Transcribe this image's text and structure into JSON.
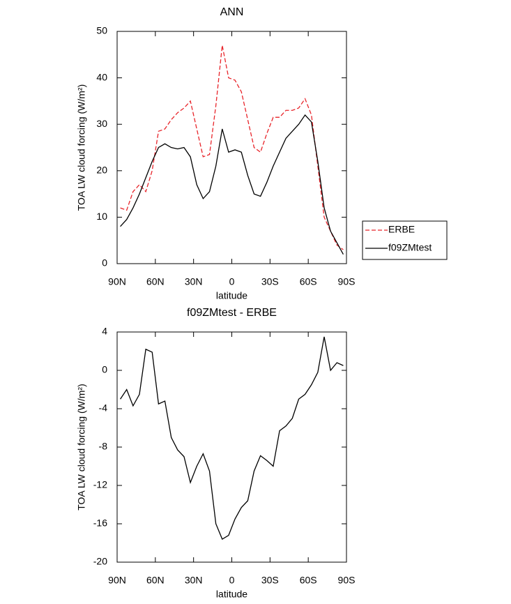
{
  "chart_data": [
    {
      "type": "line",
      "title": "ANN",
      "x_label": "latitude",
      "y_label": "TOA LW cloud forcing (W/m²)",
      "x": [
        87.5,
        82.5,
        77.5,
        72.5,
        67.5,
        62.5,
        57.5,
        52.5,
        47.5,
        42.5,
        37.5,
        32.5,
        27.5,
        22.5,
        17.5,
        12.5,
        7.5,
        2.5,
        -2.5,
        -7.5,
        -12.5,
        -17.5,
        -22.5,
        -27.5,
        -32.5,
        -37.5,
        -42.5,
        -47.5,
        -52.5,
        -57.5,
        -62.5,
        -67.5,
        -72.5,
        -77.5,
        -82.5,
        -87.5
      ],
      "series": [
        {
          "name": "ERBE",
          "color": "#e8242a",
          "line_style": "dashed",
          "values": [
            12,
            11.5,
            15.5,
            17,
            15.5,
            20,
            28.5,
            29,
            31,
            32.5,
            33.5,
            35,
            29,
            23,
            23.5,
            34,
            47,
            40,
            39.5,
            37,
            31,
            25,
            24,
            28,
            31.5,
            31.5,
            33,
            33,
            33.5,
            35.5,
            32,
            21,
            10,
            7,
            4,
            3
          ]
        },
        {
          "name": "f09ZMtest",
          "color": "#000000",
          "line_style": "solid",
          "values": [
            8,
            9.5,
            12,
            15,
            18.5,
            22,
            25,
            25.8,
            25,
            24.7,
            25,
            23,
            17,
            14,
            15.5,
            21,
            29,
            24,
            24.5,
            24,
            19,
            15,
            14.5,
            17.5,
            21,
            24,
            27,
            28.5,
            30,
            32,
            30.5,
            22,
            12,
            7,
            4.5,
            2
          ]
        }
      ],
      "xlim": [
        90,
        -90
      ],
      "xticks": [
        {
          "value": 90,
          "label": "90N"
        },
        {
          "value": 60,
          "label": "60N"
        },
        {
          "value": 30,
          "label": "30N"
        },
        0,
        {
          "value": -30,
          "label": "30S"
        },
        {
          "value": -60,
          "label": "60S"
        },
        {
          "value": -90,
          "label": "90S"
        }
      ],
      "ylim": [
        0,
        50
      ],
      "yticks": [
        0,
        10,
        20,
        30,
        40,
        50
      ],
      "legend": "right"
    },
    {
      "type": "line",
      "title": "f09ZMtest - ERBE",
      "x_label": "latitude",
      "y_label": "TOA LW cloud forcing (W/m²)",
      "x": [
        87.5,
        82.5,
        77.5,
        72.5,
        67.5,
        62.5,
        57.5,
        52.5,
        47.5,
        42.5,
        37.5,
        32.5,
        27.5,
        22.5,
        17.5,
        12.5,
        7.5,
        2.5,
        -2.5,
        -7.5,
        -12.5,
        -17.5,
        -22.5,
        -27.5,
        -32.5,
        -37.5,
        -42.5,
        -47.5,
        -52.5,
        -57.5,
        -62.5,
        -67.5,
        -72.5,
        -77.5,
        -82.5,
        -87.5
      ],
      "series": [
        {
          "color": "#000000",
          "line_style": "solid",
          "values": [
            -3,
            -2,
            -3.7,
            -2.5,
            2.2,
            1.9,
            -3.5,
            -3.2,
            -7,
            -8.3,
            -9,
            -11.7,
            -10,
            -8.7,
            -10.5,
            -16,
            -17.6,
            -17.2,
            -15.5,
            -14.3,
            -13.6,
            -10.5,
            -8.9,
            -9.4,
            -10,
            -6.3,
            -5.8,
            -5,
            -3,
            -2.5,
            -1.5,
            -0.2,
            3.5,
            0,
            0.8,
            0.5
          ]
        }
      ],
      "xlim": [
        90,
        -90
      ],
      "xticks": [
        {
          "value": 90,
          "label": "90N"
        },
        {
          "value": 60,
          "label": "60N"
        },
        {
          "value": 30,
          "label": "30N"
        },
        0,
        {
          "value": -30,
          "label": "30S"
        },
        {
          "value": -60,
          "label": "60S"
        },
        {
          "value": -90,
          "label": "90S"
        }
      ],
      "ylim": [
        -20,
        4
      ],
      "yticks": [
        -20,
        -16,
        -12,
        -8,
        -4,
        0,
        4
      ]
    }
  ]
}
